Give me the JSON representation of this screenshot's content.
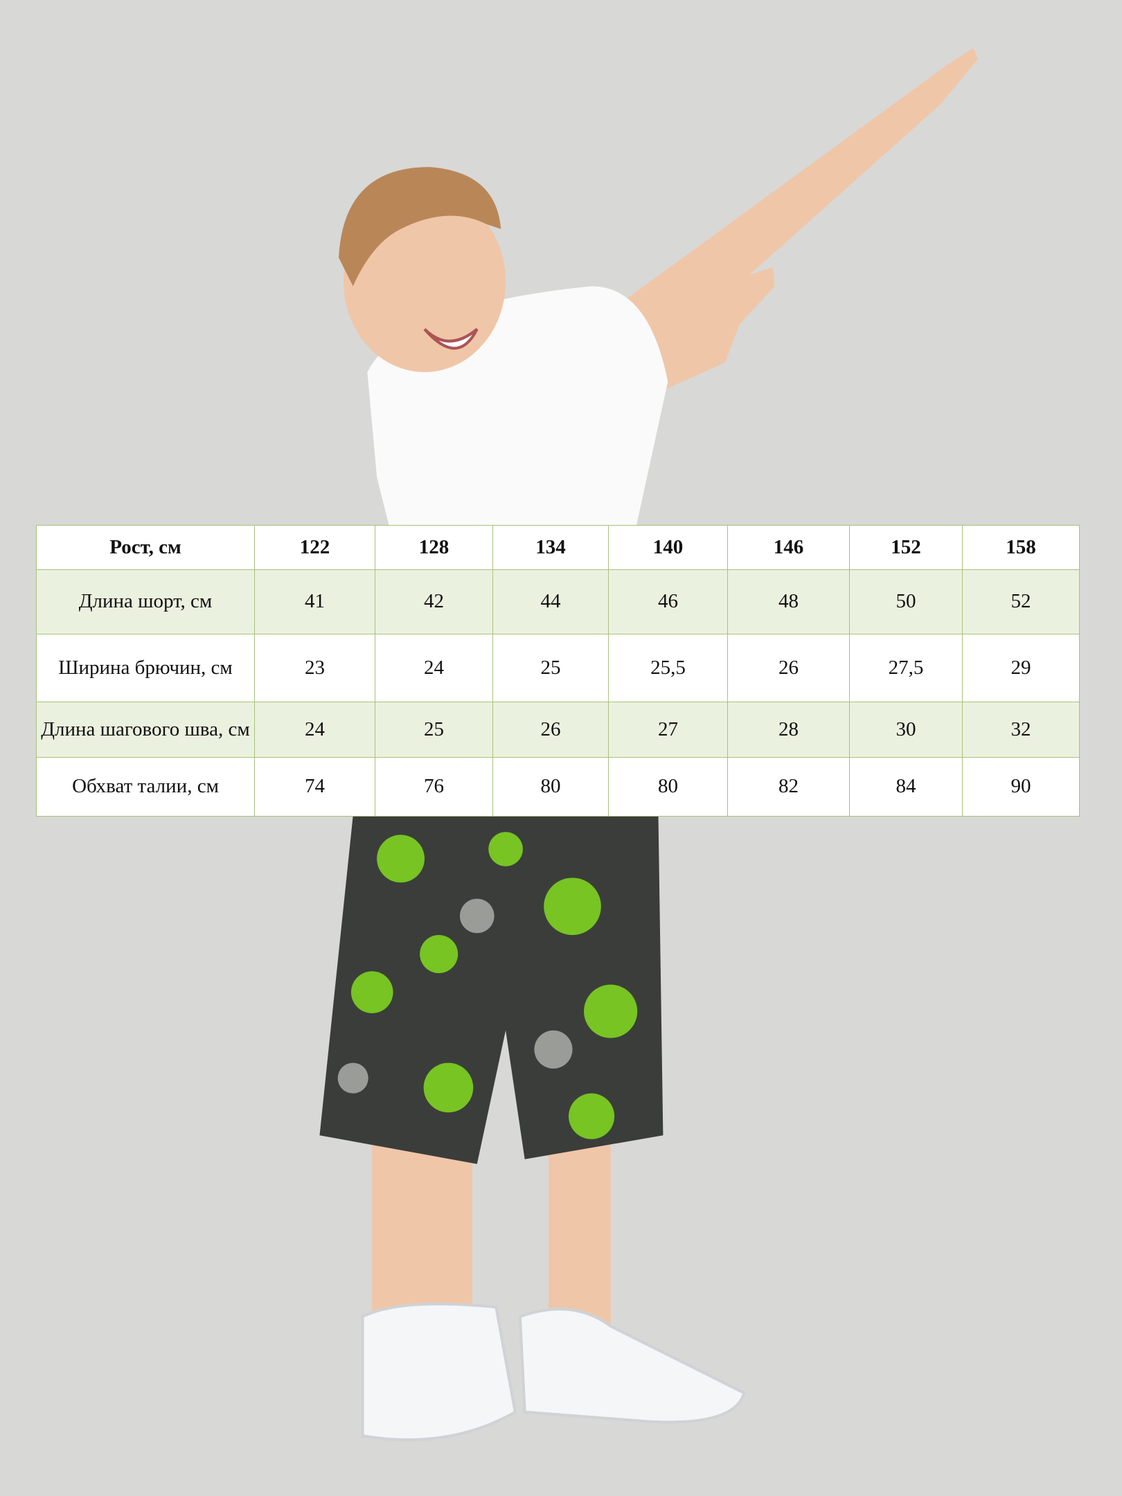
{
  "size_chart": {
    "header": {
      "label": "Рост, см",
      "sizes": [
        "122",
        "128",
        "134",
        "140",
        "146",
        "152",
        "158"
      ]
    },
    "rows": [
      {
        "label": "Длина шорт, см",
        "values": [
          "41",
          "42",
          "44",
          "46",
          "48",
          "50",
          "52"
        ]
      },
      {
        "label": "Ширина брючин, см",
        "values": [
          "23",
          "24",
          "25",
          "25,5",
          "26",
          "27,5",
          "29"
        ]
      },
      {
        "label": "Длина шагового шва, см",
        "values": [
          "24",
          "25",
          "26",
          "27",
          "28",
          "30",
          "32"
        ]
      },
      {
        "label": "Обхват талии, см",
        "values": [
          "74",
          "76",
          "80",
          "80",
          "82",
          "84",
          "90"
        ]
      }
    ]
  },
  "colors": {
    "background": "#d8d8d7",
    "table_border": "#a9c27a",
    "row_alt": "#ebf1df",
    "shorts_green": "#7ed321"
  }
}
